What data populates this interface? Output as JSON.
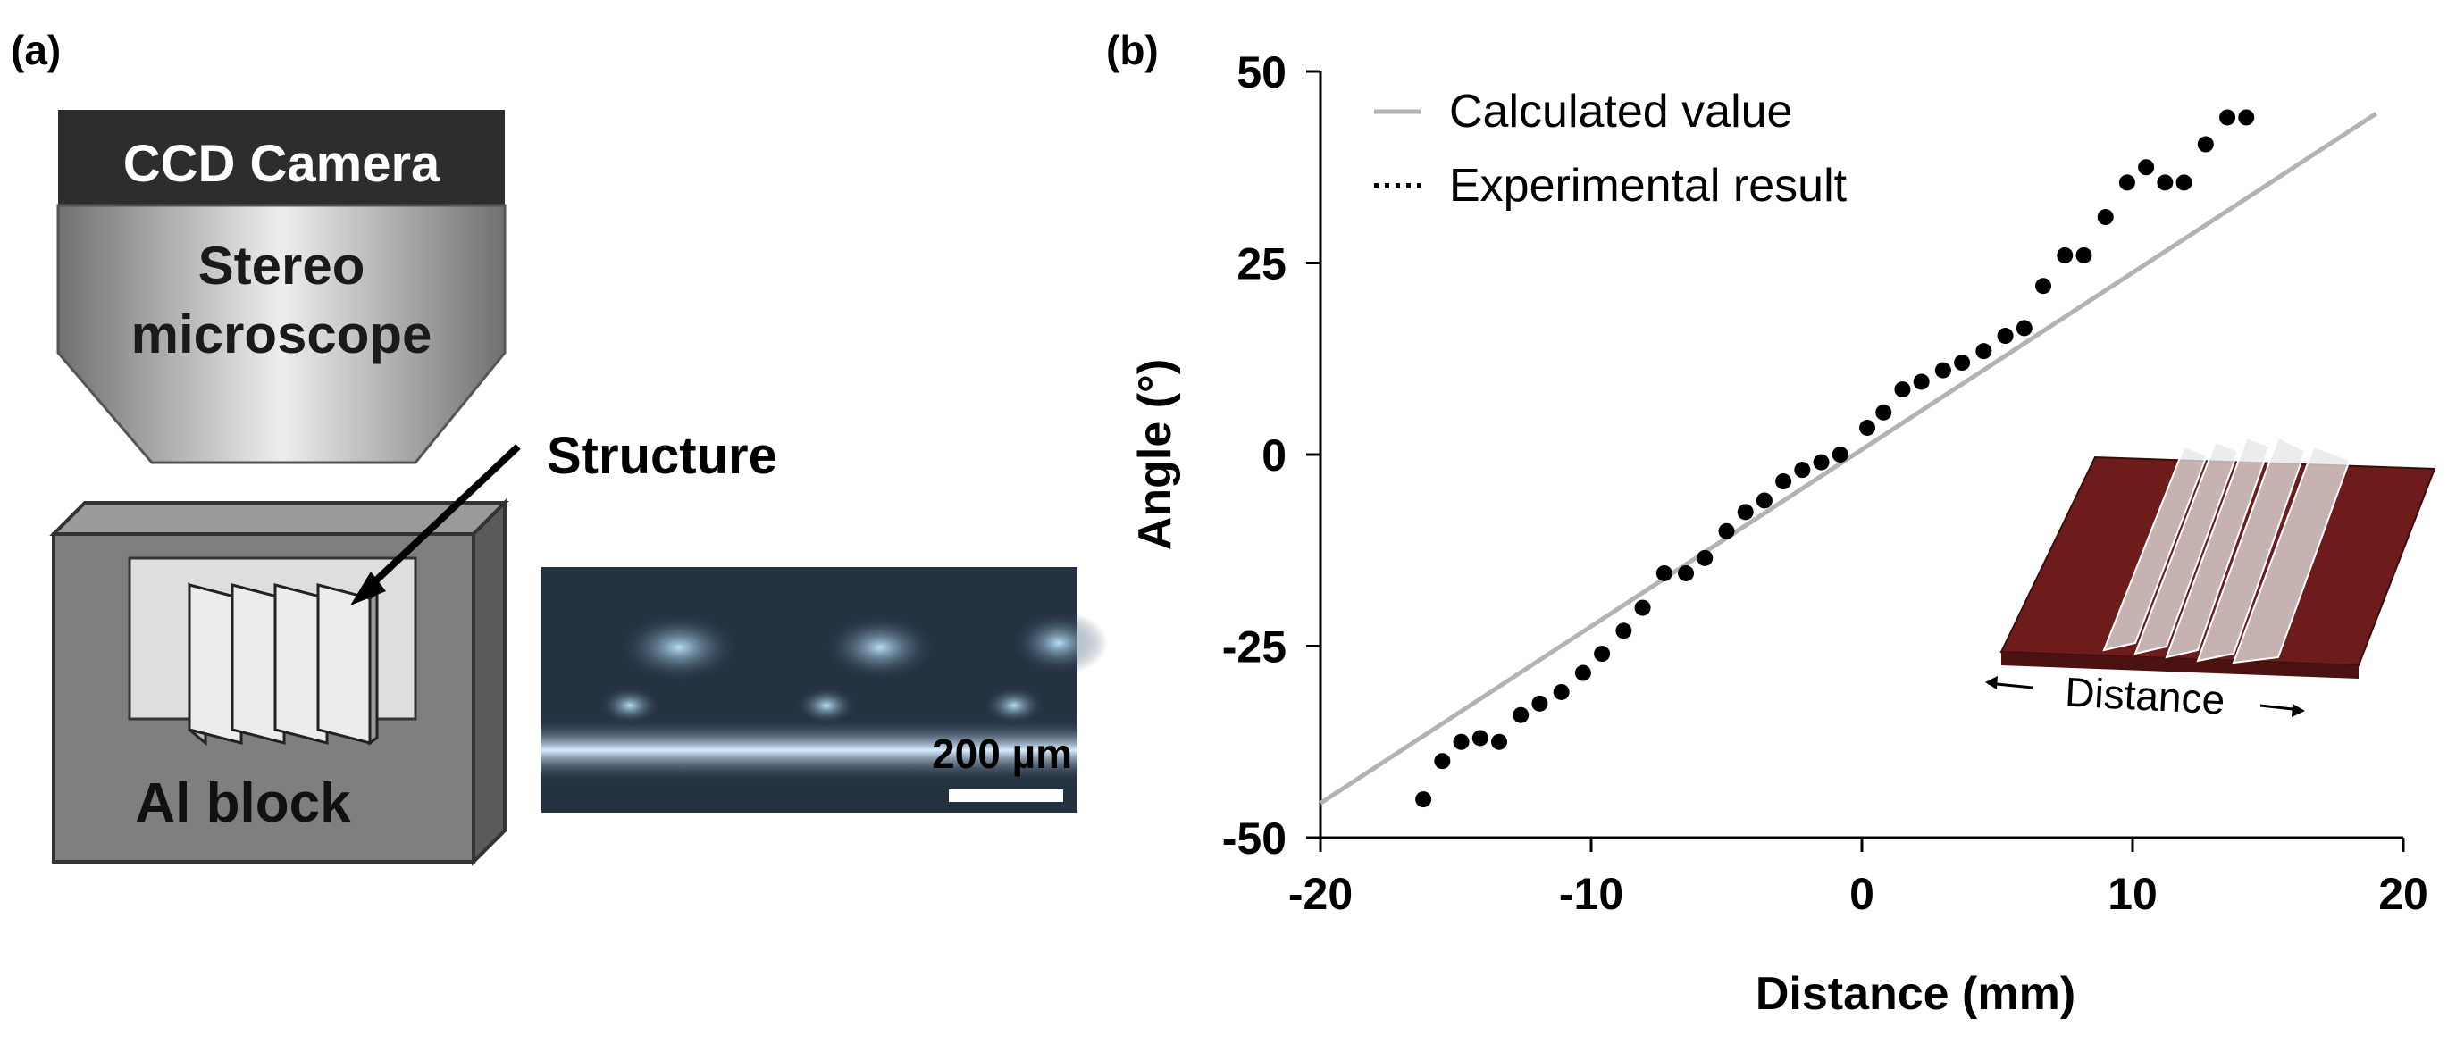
{
  "panel_a": {
    "label": "(a)",
    "camera_label": "CCD Camera",
    "microscope_label": [
      "Stereo",
      "microscope"
    ],
    "structure_label": "Structure",
    "block_label": "Al  block",
    "micrograph_scale_label": "200 µm"
  },
  "panel_b": {
    "label": "(b)",
    "inset_label": "Distance"
  },
  "colors": {
    "calculated_line": "#b3b3b3",
    "experimental_points": "#000000",
    "block_face": "#7f7f7f",
    "substrate": "#6e1b1b"
  },
  "chart_data": {
    "type": "scatter",
    "xlabel": "Distance (mm)",
    "ylabel": "Angle (°)",
    "xlim": [
      -20,
      20
    ],
    "ylim": [
      -50,
      50
    ],
    "x_ticks": [
      "-20",
      "-10",
      "0",
      "10",
      "20"
    ],
    "y_ticks": [
      "50",
      "25",
      "0",
      "-25",
      "-50"
    ],
    "x_tick_values": [
      -20,
      -10,
      0,
      10,
      20
    ],
    "y_tick_values": [
      50,
      25,
      0,
      -25,
      -50
    ],
    "legend": [
      "Calculated value",
      "Experimental result"
    ],
    "series": [
      {
        "name": "Calculated value",
        "kind": "line",
        "x": [
          -20,
          19
        ],
        "y": [
          -45.5,
          44.5
        ]
      },
      {
        "name": "Experimental result",
        "kind": "points",
        "x": [
          -16.2,
          -15.5,
          -14.8,
          -14.1,
          -13.4,
          -12.6,
          -11.9,
          -11.1,
          -10.3,
          -9.6,
          -8.8,
          -8.1,
          -7.3,
          -6.5,
          -5.8,
          -5.0,
          -4.3,
          -3.6,
          -2.9,
          -2.2,
          -1.5,
          -0.8,
          0.2,
          0.8,
          1.5,
          2.2,
          3.0,
          3.7,
          4.5,
          5.3,
          6.0,
          6.7,
          7.5,
          8.2,
          9.0,
          9.8,
          10.5,
          11.2,
          11.9,
          12.7,
          13.5,
          14.2
        ],
        "y": [
          -45.0,
          -40.0,
          -37.5,
          -37.0,
          -37.5,
          -34.0,
          -32.5,
          -31.0,
          -28.5,
          -26.0,
          -23.0,
          -20.0,
          -15.5,
          -15.5,
          -13.5,
          -10.0,
          -7.5,
          -6.0,
          -3.5,
          -2.0,
          -1.0,
          0.0,
          3.5,
          5.5,
          8.5,
          9.5,
          11.0,
          12.0,
          13.5,
          15.5,
          16.5,
          22.0,
          26.0,
          26.0,
          31.0,
          35.5,
          37.5,
          35.5,
          35.5,
          40.5,
          44.0,
          44.0
        ]
      }
    ]
  }
}
